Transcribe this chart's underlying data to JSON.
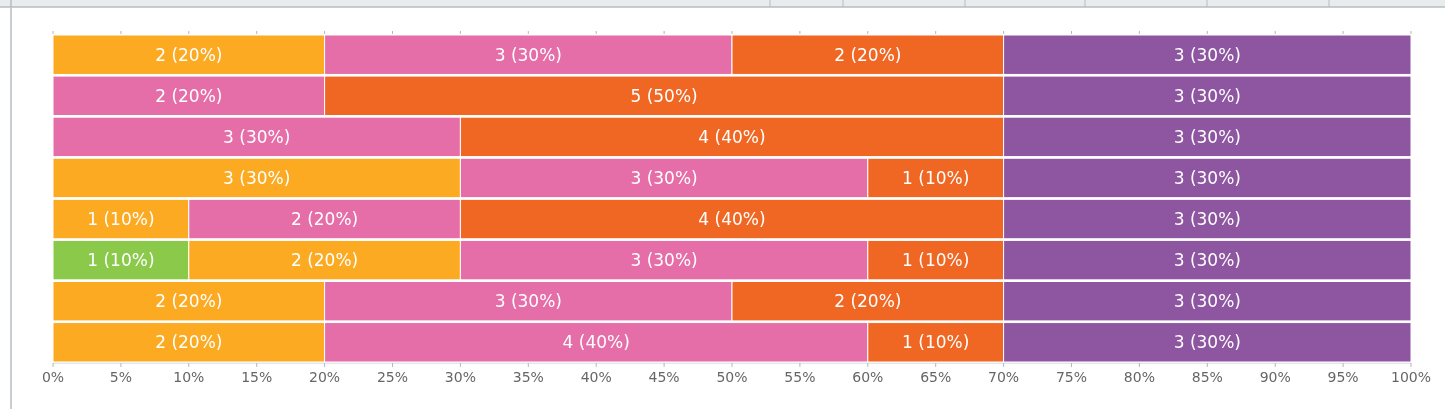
{
  "chart_data": {
    "type": "bar",
    "orientation": "horizontal",
    "stacked": true,
    "categories": [
      null,
      null,
      null,
      null,
      null,
      null,
      null,
      null
    ],
    "series": [
      {
        "color": "#8bc94a",
        "values": [
          null,
          null,
          null,
          null,
          null,
          10,
          null,
          null
        ],
        "value_labels": [
          null,
          null,
          null,
          null,
          null,
          "1 (10%)",
          null,
          null
        ]
      },
      {
        "color": "#fbaa22",
        "values": [
          20,
          null,
          null,
          30,
          10,
          20,
          20,
          20
        ],
        "value_labels": [
          "2 (20%)",
          null,
          null,
          "3 (30%)",
          "1 (10%)",
          "2 (20%)",
          "2 (20%)",
          "2 (20%)"
        ]
      },
      {
        "color": "#e56ea8",
        "values": [
          30,
          20,
          30,
          30,
          20,
          30,
          30,
          40
        ],
        "value_labels": [
          "3 (30%)",
          "2 (20%)",
          "3 (30%)",
          "3 (30%)",
          "2 (20%)",
          "3 (30%)",
          "3 (30%)",
          "4 (40%)"
        ]
      },
      {
        "color": "#f06724",
        "values": [
          20,
          50,
          40,
          10,
          40,
          10,
          20,
          10
        ],
        "value_labels": [
          "2 (20%)",
          "5 (50%)",
          "4 (40%)",
          "1 (10%)",
          "4 (40%)",
          "1 (10%)",
          "2 (20%)",
          "1 (10%)"
        ]
      },
      {
        "color": "#8e56a1",
        "values": [
          30,
          30,
          30,
          30,
          30,
          30,
          30,
          30
        ],
        "value_labels": [
          "3 (30%)",
          "3 (30%)",
          "3 (30%)",
          "3 (30%)",
          "3 (30%)",
          "3 (30%)",
          "3 (30%)",
          "3 (30%)"
        ]
      }
    ],
    "xlim": [
      0,
      100
    ],
    "xticks": [
      {
        "value": 0,
        "label": "0%"
      },
      {
        "value": 5,
        "label": "5%"
      },
      {
        "value": 10,
        "label": "10%"
      },
      {
        "value": 15,
        "label": "15%"
      },
      {
        "value": 20,
        "label": "20%"
      },
      {
        "value": 25,
        "label": "25%"
      },
      {
        "value": 30,
        "label": "30%"
      },
      {
        "value": 35,
        "label": "35%"
      },
      {
        "value": 40,
        "label": "40%"
      },
      {
        "value": 45,
        "label": "45%"
      },
      {
        "value": 50,
        "label": "50%"
      },
      {
        "value": 55,
        "label": "55%"
      },
      {
        "value": 60,
        "label": "60%"
      },
      {
        "value": 65,
        "label": "65%"
      },
      {
        "value": 70,
        "label": "70%"
      },
      {
        "value": 75,
        "label": "75%"
      },
      {
        "value": 80,
        "label": "80%"
      },
      {
        "value": 85,
        "label": "85%"
      },
      {
        "value": 90,
        "label": "90%"
      },
      {
        "value": 95,
        "label": "95%"
      },
      {
        "value": 100,
        "label": "100%"
      }
    ],
    "tick_labels": "x",
    "grid": false
  }
}
